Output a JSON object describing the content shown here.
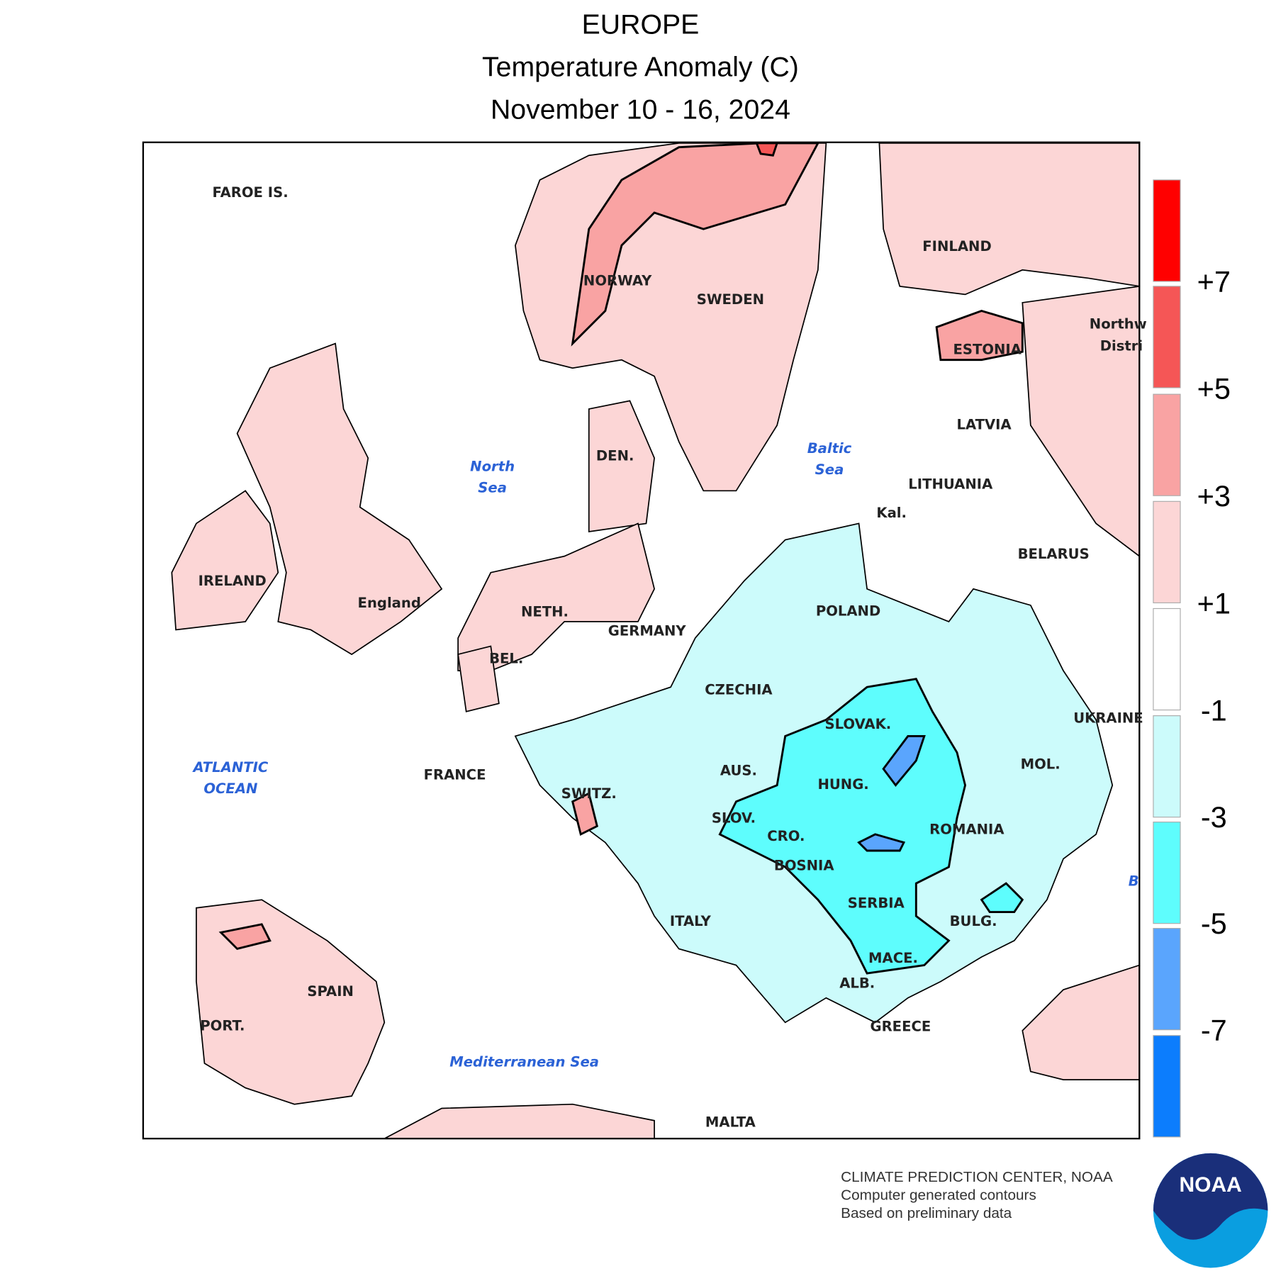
{
  "header": {
    "title": "EUROPE",
    "subtitle": "Temperature Anomaly (C)",
    "dates": "November 10 - 16, 2024"
  },
  "map": {
    "labels": [
      "FAROE IS.",
      "NORWAY",
      "SWEDEN",
      "FINLAND",
      "ESTONIA",
      "LATVIA",
      "LITHUANIA",
      "Kal.",
      "BELARUS",
      "DEN.",
      "IRELAND",
      "England",
      "NETH.",
      "GERMANY",
      "POLAND",
      "BEL.",
      "CZECHIA",
      "SLOVAK.",
      "UKRAINE",
      "MOL.",
      "AUS.",
      "HUNG.",
      "FRANCE",
      "SWITZ.",
      "SLOV.",
      "CRO.",
      "ROMANIA",
      "BOSNIA",
      "SERBIA",
      "BULG.",
      "ITALY",
      "MACE.",
      "ALB.",
      "SPAIN",
      "PORT.",
      "GREECE",
      "MALTA",
      "Northw",
      "Distri"
    ],
    "seas": [
      "North",
      "Sea",
      "Baltic",
      "Sea",
      "ATLANTIC",
      "OCEAN",
      "Mediterranean Sea",
      "B"
    ]
  },
  "legend": {
    "colors": [
      "#ff0000",
      "#f55656",
      "#f9a3a3",
      "#fcd6d6",
      "#ffffff",
      "#ccfbfb",
      "#5efdfd",
      "#5aa5fd",
      "#0c7dfd"
    ],
    "labels": [
      "+7",
      "+5",
      "+3",
      "+1",
      "-1",
      "-3",
      "-5",
      "-7"
    ]
  },
  "footer": [
    "CLIMATE PREDICTION CENTER, NOAA",
    "Computer generated contours",
    "Based on preliminary data"
  ],
  "logo": "NOAA"
}
